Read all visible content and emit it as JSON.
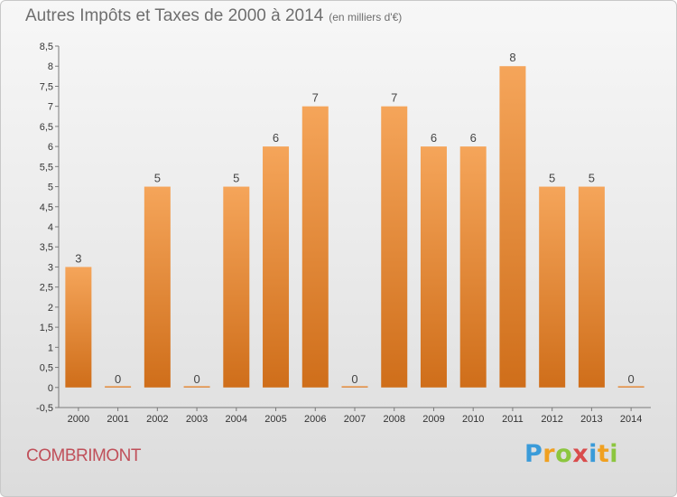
{
  "chart_data": {
    "type": "bar",
    "title": "Autres Impôts et Taxes de 2000 à 2014",
    "unit_note": "(en milliers d'€)",
    "subtitle": "COMBRIMONT",
    "categories": [
      "2000",
      "2001",
      "2002",
      "2003",
      "2004",
      "2005",
      "2006",
      "2007",
      "2008",
      "2009",
      "2010",
      "2011",
      "2012",
      "2013",
      "2014"
    ],
    "values": [
      3,
      0,
      5,
      0,
      5,
      6,
      7,
      0,
      7,
      6,
      6,
      8,
      5,
      5,
      0
    ],
    "value_labels": [
      "3",
      "0",
      "5",
      "0",
      "5",
      "6",
      "7",
      "0",
      "7",
      "6",
      "6",
      "8",
      "5",
      "5",
      "0"
    ],
    "ylim": [
      -0.5,
      8.5
    ],
    "yticks": [
      -0.5,
      0,
      0.5,
      1,
      1.5,
      2,
      2.5,
      3,
      3.5,
      4,
      4.5,
      5,
      5.5,
      6,
      6.5,
      7,
      7.5,
      8,
      8.5
    ],
    "ytick_labels": [
      "-0,5",
      "0",
      "0,5",
      "1",
      "1,5",
      "2",
      "2,5",
      "3",
      "3,5",
      "4",
      "4,5",
      "5",
      "5,5",
      "6",
      "6,5",
      "7",
      "7,5",
      "8",
      "8,5"
    ],
    "grid": false,
    "bar_color_top": "#f5a55a",
    "bar_color_bottom": "#cf6e1a"
  },
  "branding": {
    "logo_letters": [
      "P",
      "r",
      "o",
      "x",
      "i",
      "t",
      "i"
    ],
    "logo_colors": [
      "#3a9bd9",
      "#f0a020",
      "#8cc63f",
      "#d94c4c",
      "#3a9bd9",
      "#f0a020",
      "#8cc63f"
    ]
  }
}
